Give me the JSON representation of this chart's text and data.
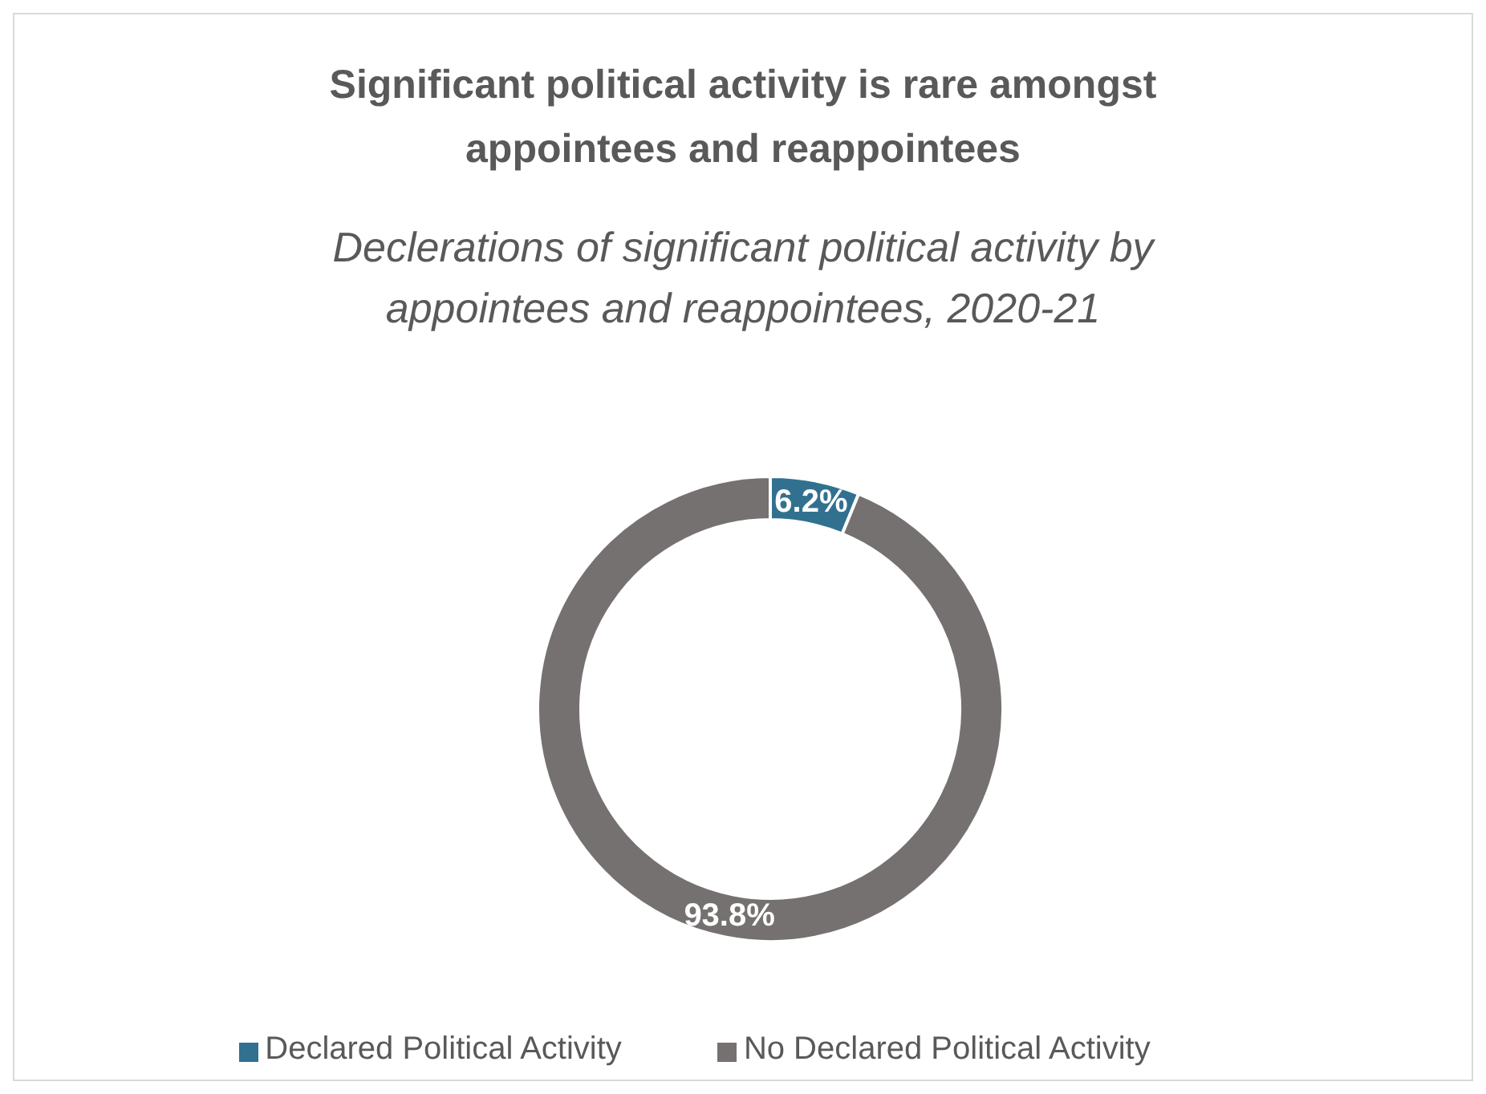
{
  "chart_data": {
    "type": "donut",
    "title": "Significant political activity is rare amongst appointees and reappointees",
    "subtitle": "Declerations of significant political activity by appointees and reappointees, 2020-21",
    "categories": [
      "Declared Political Activity",
      "No Declared Political Activity"
    ],
    "values": [
      6.2,
      93.8
    ],
    "colors": [
      "#31718f",
      "#767171"
    ],
    "value_labels": [
      "6.2%",
      "93.8%"
    ],
    "legend": "bottom"
  }
}
